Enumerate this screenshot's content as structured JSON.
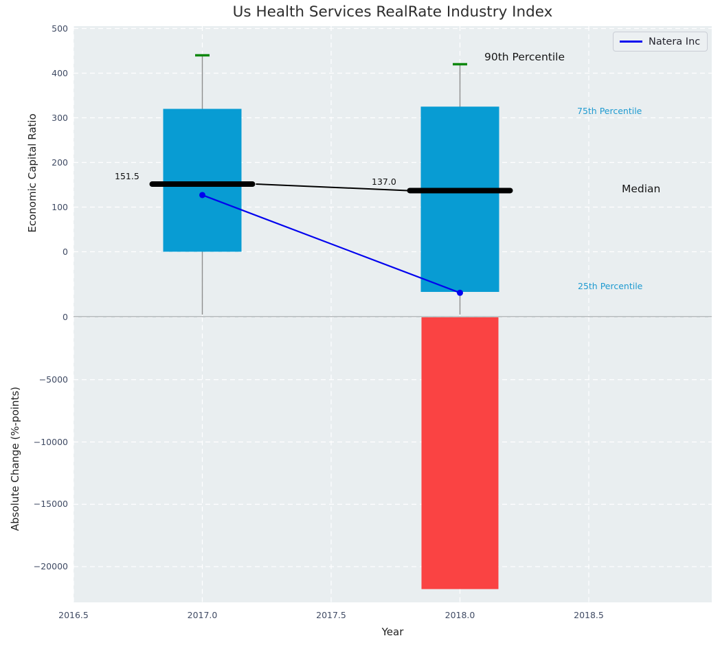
{
  "chart_data": {
    "type": "box-bar-line-combo",
    "title": "Us Health Services RealRate Industry Index",
    "xlabel": "Year",
    "x_ticks": [
      2016.5,
      2017.0,
      2017.5,
      2018.0,
      2018.5
    ],
    "x_tick_labels": [
      "2016.5",
      "2017.0",
      "2017.5",
      "2018.0",
      "2018.5"
    ],
    "xlim": [
      2016.5,
      2018.97
    ],
    "top_axis": {
      "label": "Economic Capital Ratio",
      "ticks": [
        500,
        400,
        300,
        200,
        100,
        0
      ],
      "tick_labels": [
        "500",
        "400",
        "300",
        "200",
        "100",
        "0"
      ],
      "ylim": [
        -144,
        506
      ],
      "grid": true
    },
    "bottom_axis": {
      "label": "Absolute Change (%-points)",
      "ticks": [
        0,
        -5000,
        -10000,
        -15000,
        -20000
      ],
      "tick_labels": [
        "0",
        "−5000",
        "−10000",
        "−15000",
        "−20000"
      ],
      "ylim": [
        -22900,
        30
      ],
      "grid": true
    },
    "industry_boxes": [
      {
        "year": 2017,
        "q1": 0,
        "median": 151.5,
        "q3": 320,
        "p90": 440
      },
      {
        "year": 2018,
        "q1": -90,
        "median": 137.0,
        "q3": 325,
        "p90": 420
      }
    ],
    "median_value_labels": {
      "y2017": "151.5",
      "y2018": "137.0"
    },
    "natera_series": {
      "name": "Natera Inc",
      "points": [
        [
          2017,
          127
        ],
        [
          2018,
          -92
        ]
      ]
    },
    "change_bars": [
      {
        "year": 2018,
        "value": -21800
      }
    ],
    "annotations": {
      "p90": "90th Percentile",
      "p75": "75th Percentile",
      "median": "Median",
      "p25": "25th Percentile"
    },
    "legend": {
      "label": "Natera Inc",
      "position": "upper-right"
    },
    "colors": {
      "plot_bg": "#e9eef0",
      "grid": "#ffffff",
      "box": "#089cd3",
      "bar_negative": "#fa4343",
      "whisker_cap": "#0e870e",
      "whisker_line": "#8d8d8d",
      "median": "#000000",
      "natera": "#0202ee",
      "percentile_text": "#1e9ad0",
      "tick_text": "#3f4a63",
      "zero_line": "#aeb3b6"
    }
  }
}
